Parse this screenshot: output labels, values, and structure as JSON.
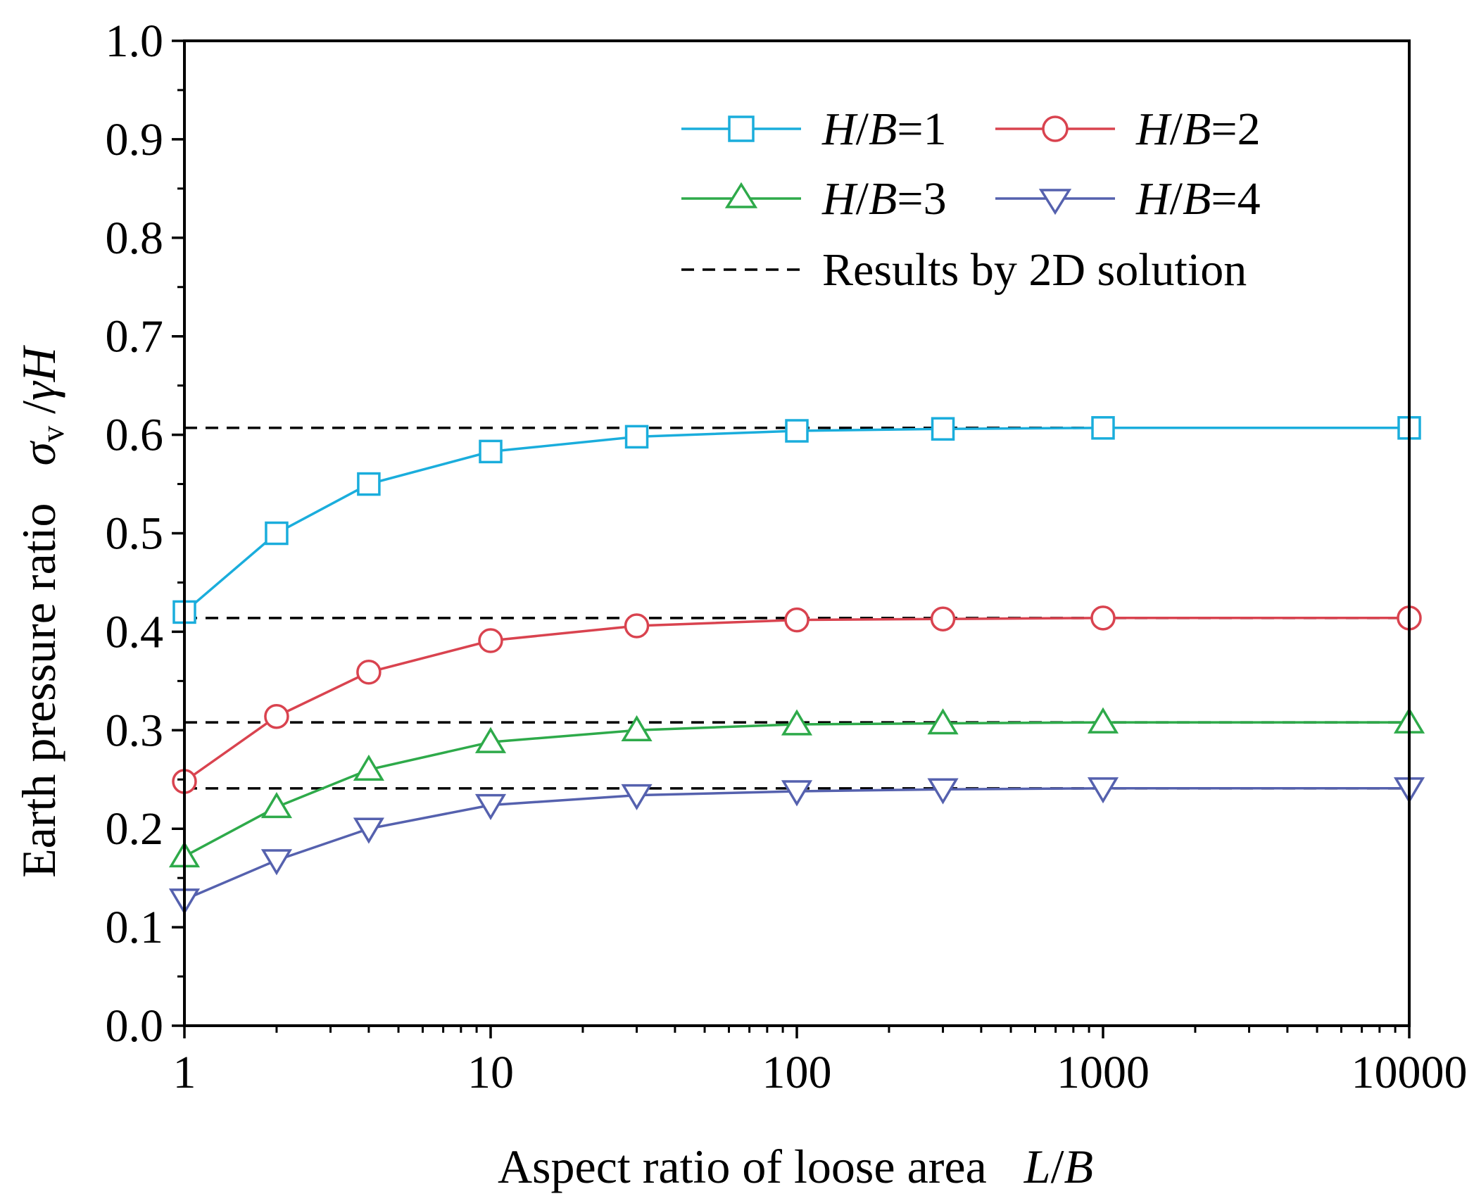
{
  "chart_data": {
    "type": "line",
    "xscale": "log",
    "xlim": [
      1,
      10000
    ],
    "ylim": [
      0.0,
      1.0
    ],
    "x": [
      1,
      2,
      4,
      10,
      30,
      100,
      300,
      1000,
      10000
    ],
    "x_tick_labels": [
      "1",
      "10",
      "100",
      "1000",
      "10000"
    ],
    "y_tick_labels": [
      "0.0",
      "0.1",
      "0.2",
      "0.3",
      "0.4",
      "0.5",
      "0.6",
      "0.7",
      "0.8",
      "0.9",
      "1.0"
    ],
    "xlabel": {
      "text": "Aspect ratio of loose area",
      "var1": "L",
      "slash": "/",
      "var2": "B"
    },
    "ylabel": {
      "text": "Earth pressure ratio",
      "sigma": "σ",
      "sub": "v",
      "slash": " /",
      "gamma": "γ",
      "H": "H"
    },
    "series": [
      {
        "name": "H/B=1",
        "prefix_H": "H",
        "slash": "/",
        "prefix_B": "B",
        "suffix": "=1",
        "color": "#1AADDC",
        "marker": "square",
        "values": [
          0.42,
          0.5,
          0.55,
          0.583,
          0.598,
          0.604,
          0.606,
          0.607,
          0.607
        ]
      },
      {
        "name": "H/B=2",
        "prefix_H": "H",
        "slash": "/",
        "prefix_B": "B",
        "suffix": "=2",
        "color": "#D9434F",
        "marker": "circle",
        "values": [
          0.248,
          0.314,
          0.359,
          0.391,
          0.406,
          0.412,
          0.413,
          0.414,
          0.414
        ]
      },
      {
        "name": "H/B=3",
        "prefix_H": "H",
        "slash": "/",
        "prefix_B": "B",
        "suffix": "=3",
        "color": "#2EAA4A",
        "marker": "triangle-up",
        "values": [
          0.172,
          0.222,
          0.26,
          0.288,
          0.3,
          0.306,
          0.307,
          0.308,
          0.308
        ]
      },
      {
        "name": "H/B=4",
        "prefix_H": "H",
        "slash": "/",
        "prefix_B": "B",
        "suffix": "=4",
        "color": "#5561AE",
        "marker": "triangle-down",
        "values": [
          0.128,
          0.168,
          0.2,
          0.224,
          0.234,
          0.238,
          0.24,
          0.241,
          0.241
        ]
      }
    ],
    "reference_lines": {
      "name": "Results by 2D solution",
      "style": "dashed",
      "color": "#000000",
      "values": [
        0.607,
        0.414,
        0.308,
        0.241
      ]
    },
    "legend_position": "top-right",
    "grid": false
  }
}
